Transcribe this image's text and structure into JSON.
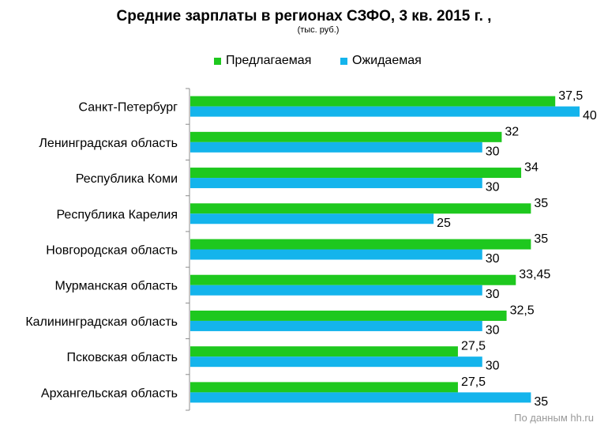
{
  "chart_data": {
    "type": "bar",
    "orientation": "horizontal",
    "title": "Средние зарплаты в регионах СЗФО, 3 кв. 2015 г. ,",
    "subtitle": "(тыс. руб.)",
    "categories": [
      "Санкт-Петербург",
      "Ленинградская область",
      "Республика Коми",
      "Республика Карелия",
      "Новгородская область",
      "Мурманская область",
      "Калининградская область",
      "Псковская область",
      "Архангельская область"
    ],
    "series": [
      {
        "name": "Предлагаемая",
        "color": "#1ec81e",
        "values": [
          37.5,
          32,
          34,
          35,
          35,
          33.45,
          32.5,
          27.5,
          27.5
        ],
        "labels": [
          "37,5",
          "32",
          "34",
          "35",
          "35",
          "33,45",
          "32,5",
          "27,5",
          "27,5"
        ]
      },
      {
        "name": "Ожидаемая",
        "color": "#14b4ec",
        "values": [
          40,
          30,
          30,
          25,
          30,
          30,
          30,
          30,
          35
        ],
        "labels": [
          "40",
          "30",
          "30",
          "25",
          "30",
          "30",
          "30",
          "30",
          "35"
        ]
      }
    ],
    "xlim": [
      0,
      40
    ],
    "legend": "top",
    "grid": false
  },
  "source_note": "По данным hh.ru"
}
